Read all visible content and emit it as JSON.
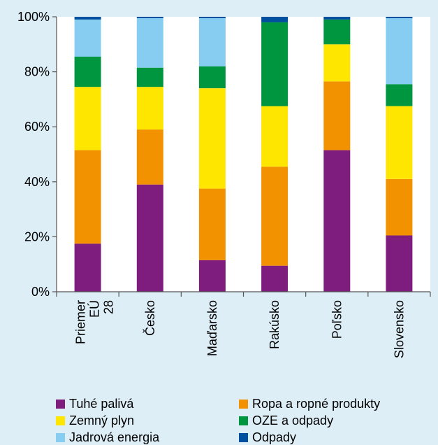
{
  "chart_data": {
    "type": "bar",
    "stacked": true,
    "categories": [
      "Priemer EÚ 28",
      "Česko",
      "Maďarsko",
      "Rakúsko",
      "Poľsko",
      "Slovensko"
    ],
    "ylim": [
      0,
      100
    ],
    "ytick_labels": [
      "0%",
      "20%",
      "40%",
      "60%",
      "80%",
      "100%"
    ],
    "ytick_values": [
      0,
      20,
      40,
      60,
      80,
      100
    ],
    "grid": false,
    "legend_position": "bottom",
    "series": [
      {
        "name": "Tuhé palivá",
        "color": "#7f1d7f",
        "values": [
          17.5,
          39,
          11.5,
          9.5,
          51.5,
          20.5
        ]
      },
      {
        "name": "Ropa a ropné produkty",
        "color": "#f39200",
        "values": [
          34,
          20,
          26,
          36,
          25,
          20.5
        ]
      },
      {
        "name": "Zemný plyn",
        "color": "#ffe600",
        "values": [
          23,
          15.5,
          36.5,
          22,
          13.5,
          26.5
        ]
      },
      {
        "name": "OZE a odpady",
        "color": "#009640",
        "values": [
          11,
          7,
          8,
          30.5,
          9,
          8
        ]
      },
      {
        "name": "Jadrová energia",
        "color": "#87cdf1",
        "values": [
          13.5,
          18,
          17.5,
          0,
          0,
          24
        ]
      },
      {
        "name": "Odpady",
        "color": "#0050a0",
        "values": [
          1,
          0.5,
          0.5,
          2,
          1,
          0.5
        ]
      }
    ],
    "legend_order": [
      0,
      1,
      2,
      3,
      4,
      5
    ]
  }
}
